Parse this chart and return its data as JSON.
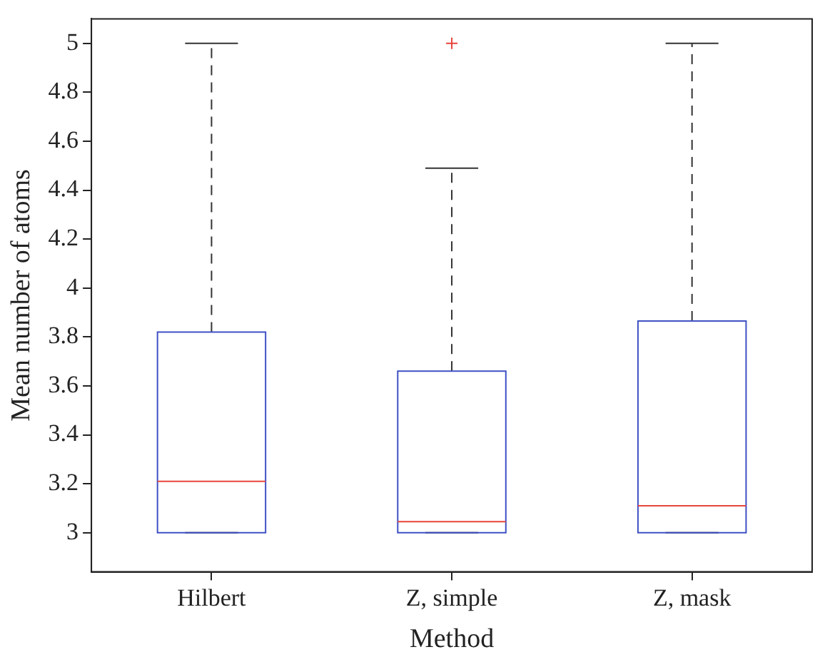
{
  "chart_data": {
    "type": "box",
    "xlabel": "Method",
    "ylabel": "Mean number of atoms",
    "categories": [
      "Hilbert",
      "Z, simple",
      "Z, mask"
    ],
    "series": [
      {
        "color": "#3f51c4",
        "boxes": [
          {
            "low": 3,
            "q1": 3,
            "median": 3.21,
            "q3": 3.82,
            "high": 5
          },
          {
            "low": 3,
            "q1": 3,
            "median": 3.045,
            "q3": 3.66,
            "high": 4.49,
            "outliers": [
              5
            ]
          },
          {
            "low": 3,
            "q1": 3,
            "median": 3.11,
            "q3": 3.865,
            "high": 5
          }
        ]
      }
    ],
    "ylim": [
      2.84,
      5.1
    ],
    "yticks": [
      3,
      3.2,
      3.4,
      3.6,
      3.8,
      4,
      4.2,
      4.4,
      4.6,
      4.8,
      5
    ],
    "grid": false,
    "legend": false,
    "line_style": "dashed"
  }
}
